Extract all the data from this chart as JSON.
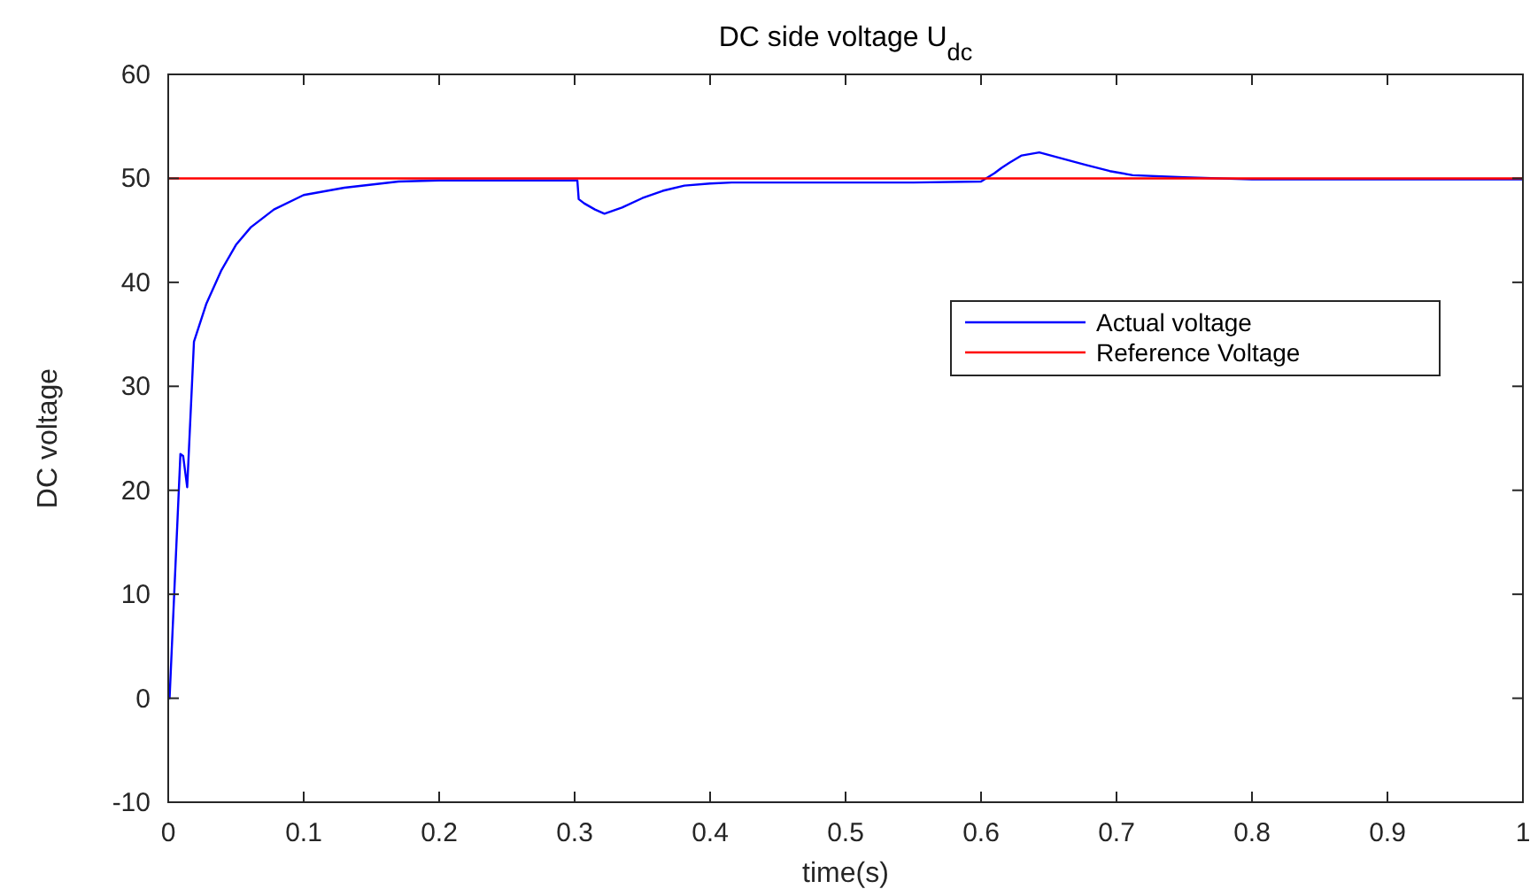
{
  "chart_data": {
    "type": "line",
    "title": "DC side voltage U$_{dc}$",
    "xlabel": "time(s)",
    "ylabel": "DC voltage",
    "xlim": [
      0,
      1
    ],
    "ylim": [
      -10,
      60
    ],
    "xticks": [
      0,
      0.1,
      0.2,
      0.3,
      0.4,
      0.5,
      0.6,
      0.7,
      0.8,
      0.9,
      1
    ],
    "yticks": [
      -10,
      0,
      10,
      20,
      30,
      40,
      50,
      60
    ],
    "grid": false,
    "legend": "right",
    "line_style": "solid",
    "series": [
      {
        "name": "Actual voltage",
        "color": "#0000ff",
        "x": [
          0,
          0.001,
          0.009,
          0.011,
          0.014,
          0.019,
          0.028,
          0.039,
          0.05,
          0.061,
          0.078,
          0.1,
          0.13,
          0.17,
          0.2,
          0.25,
          0.3,
          0.302,
          0.303,
          0.307,
          0.315,
          0.322,
          0.335,
          0.35,
          0.365,
          0.381,
          0.4,
          0.416,
          0.45,
          0.5,
          0.55,
          0.6,
          0.61,
          0.615,
          0.621,
          0.63,
          0.643,
          0.66,
          0.677,
          0.695,
          0.712,
          0.75,
          0.8,
          0.85,
          0.9,
          0.95,
          1
        ],
        "values": [
          0,
          0,
          23.5,
          23.3,
          20.3,
          34.3,
          37.9,
          41.1,
          43.6,
          45.3,
          47,
          48.4,
          49.1,
          49.7,
          49.8,
          49.8,
          49.8,
          49.8,
          48,
          47.6,
          47,
          46.6,
          47.2,
          48.1,
          48.8,
          49.3,
          49.5,
          49.6,
          49.6,
          49.6,
          49.6,
          49.7,
          50.5,
          51,
          51.5,
          52.2,
          52.5,
          51.9,
          51.3,
          50.7,
          50.3,
          50.1,
          49.9,
          49.9,
          49.9,
          49.9,
          49.9
        ]
      },
      {
        "name": "Reference Voltage",
        "color": "#ff0000",
        "x": [
          0,
          1
        ],
        "values": [
          50,
          50
        ]
      }
    ]
  }
}
